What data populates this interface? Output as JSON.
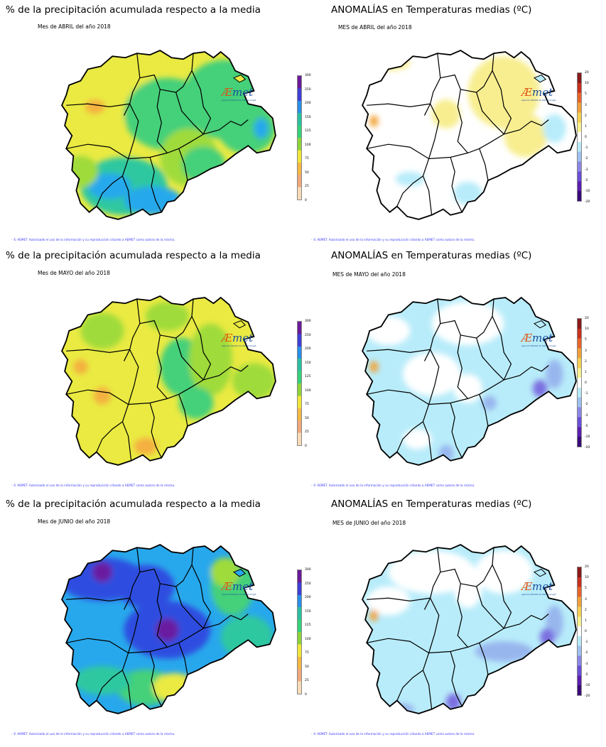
{
  "panels": [
    {
      "title": "% de la precipitación acumulada respecto a la media",
      "subtitle": "Mes de ABRIL del año 2018",
      "type": "precip",
      "variant": "april"
    },
    {
      "title": "ANOMALÍAS en Temperaturas medias (ºC)",
      "subtitle": "MES de ABRIL del año 2018",
      "type": "temp",
      "variant": "april"
    },
    {
      "title": "% de la precipitación acumulada respecto a la media",
      "subtitle": "Mes de MAYO del año 2018",
      "type": "precip",
      "variant": "may"
    },
    {
      "title": "ANOMALÍAS en Temperaturas medias (ºC)",
      "subtitle": "MES de MAYO del año 2018",
      "type": "temp",
      "variant": "may"
    },
    {
      "title": "% de la precipitación acumulada respecto a la media",
      "subtitle": "Mes de JUNIO del año 2018",
      "type": "precip",
      "variant": "june"
    },
    {
      "title": "ANOMALÍAS en Temperaturas medias (ºC)",
      "subtitle": "MES de JUNIO del año 2018",
      "type": "temp",
      "variant": "june"
    }
  ],
  "credit": "- © AEMET. Autorizado el uso de la información y su reproducción citando a AEMET como autora de la misma.",
  "logo": {
    "mark": "Æ",
    "text": "met",
    "tagline": "Agencia Estatal de Meteorología"
  },
  "precip_scale": {
    "ticks": [
      "300",
      "250",
      "200",
      "150",
      "125",
      "100",
      "75",
      "50",
      "25",
      "0"
    ],
    "colors": [
      "#6a1a9a",
      "#3f3fd8",
      "#2a8ee8",
      "#2ac0a0",
      "#35d07a",
      "#8ed33a",
      "#f0e63a",
      "#f4b844",
      "#f0a87a",
      "#f8dcb8"
    ]
  },
  "temp_scale": {
    "ticks": [
      "20",
      "10",
      "5",
      "3",
      "2",
      "1",
      "0",
      "-1",
      "-2",
      "-3",
      "-5",
      "-10",
      "-20"
    ],
    "colors": [
      "#8a1a1a",
      "#c8301e",
      "#e8642a",
      "#f0a03a",
      "#f4cf52",
      "#f8f290",
      "#ffffff",
      "#b8eaf8",
      "#9ec0f0",
      "#8a86e6",
      "#6a4ed8",
      "#5a1fb0",
      "#3a0a7a"
    ]
  },
  "region_colors": {
    "precip": {
      "yellow": "#eaea42",
      "green_light": "#9fdb3a",
      "green": "#45d07a",
      "teal": "#2ec8a0",
      "blue": "#28a8ec",
      "dblue": "#2f4ee0",
      "purple": "#6a1aa0",
      "orange": "#f4b040",
      "salmon": "#f0a070"
    },
    "temp": {
      "white": "#ffffff",
      "lightblue": "#b8ecfa",
      "blue": "#98b6ee",
      "violet": "#7a6ee0",
      "yellow": "#f8ee90",
      "orange": "#f2a43a"
    }
  }
}
